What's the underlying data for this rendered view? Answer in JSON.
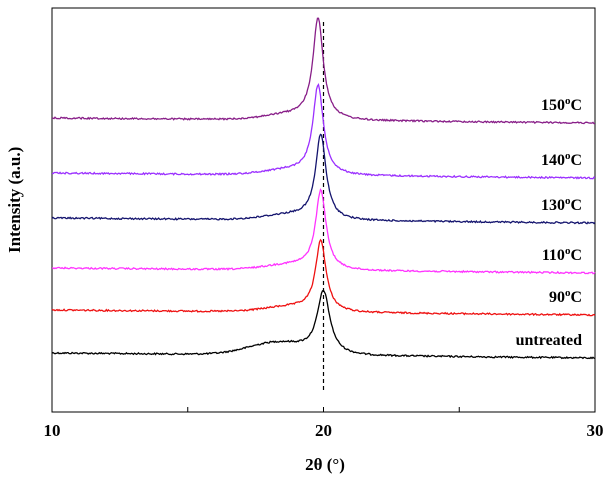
{
  "chart_data": {
    "type": "line",
    "title": "",
    "xlabel": "2θ (°)",
    "ylabel": "Intensity (a.u.)",
    "xlim": [
      10,
      30
    ],
    "x_ticks": [
      "10",
      "20",
      "30"
    ],
    "y_ticks": [],
    "grid": false,
    "legend": "none",
    "reference_line": {
      "x": 20,
      "style": "dashed"
    },
    "series": [
      {
        "name": "untreated",
        "color": "#000000",
        "offset": 0,
        "peak_x": 20.0,
        "peak_height": 62,
        "width": 0.28,
        "amorphous": true,
        "label": {
          "text": "untreated",
          "sup": "",
          "suffix": ""
        }
      },
      {
        "name": "90°C",
        "color": "#ee1111",
        "offset": 43,
        "peak_x": 19.9,
        "peak_height": 70,
        "width": 0.23,
        "amorphous": false,
        "label": {
          "text": "90",
          "sup": "o",
          "suffix": "C"
        }
      },
      {
        "name": "110°C",
        "color": "#ff33ff",
        "offset": 85,
        "peak_x": 19.9,
        "peak_height": 78,
        "width": 0.23,
        "amorphous": false,
        "label": {
          "text": "110",
          "sup": "o",
          "suffix": "C"
        }
      },
      {
        "name": "130°C",
        "color": "#14146e",
        "offset": 135,
        "peak_x": 19.9,
        "peak_height": 84,
        "width": 0.23,
        "amorphous": false,
        "label": {
          "text": "130",
          "sup": "o",
          "suffix": "C"
        }
      },
      {
        "name": "140°C",
        "color": "#9b30ff",
        "offset": 180,
        "peak_x": 19.8,
        "peak_height": 88,
        "width": 0.23,
        "amorphous": false,
        "label": {
          "text": "140",
          "sup": "o",
          "suffix": "C"
        }
      },
      {
        "name": "150°C",
        "color": "#881e88",
        "offset": 235,
        "peak_x": 19.8,
        "peak_height": 100,
        "width": 0.23,
        "amorphous": false,
        "label": {
          "text": "150",
          "sup": "o",
          "suffix": "C"
        }
      }
    ]
  }
}
